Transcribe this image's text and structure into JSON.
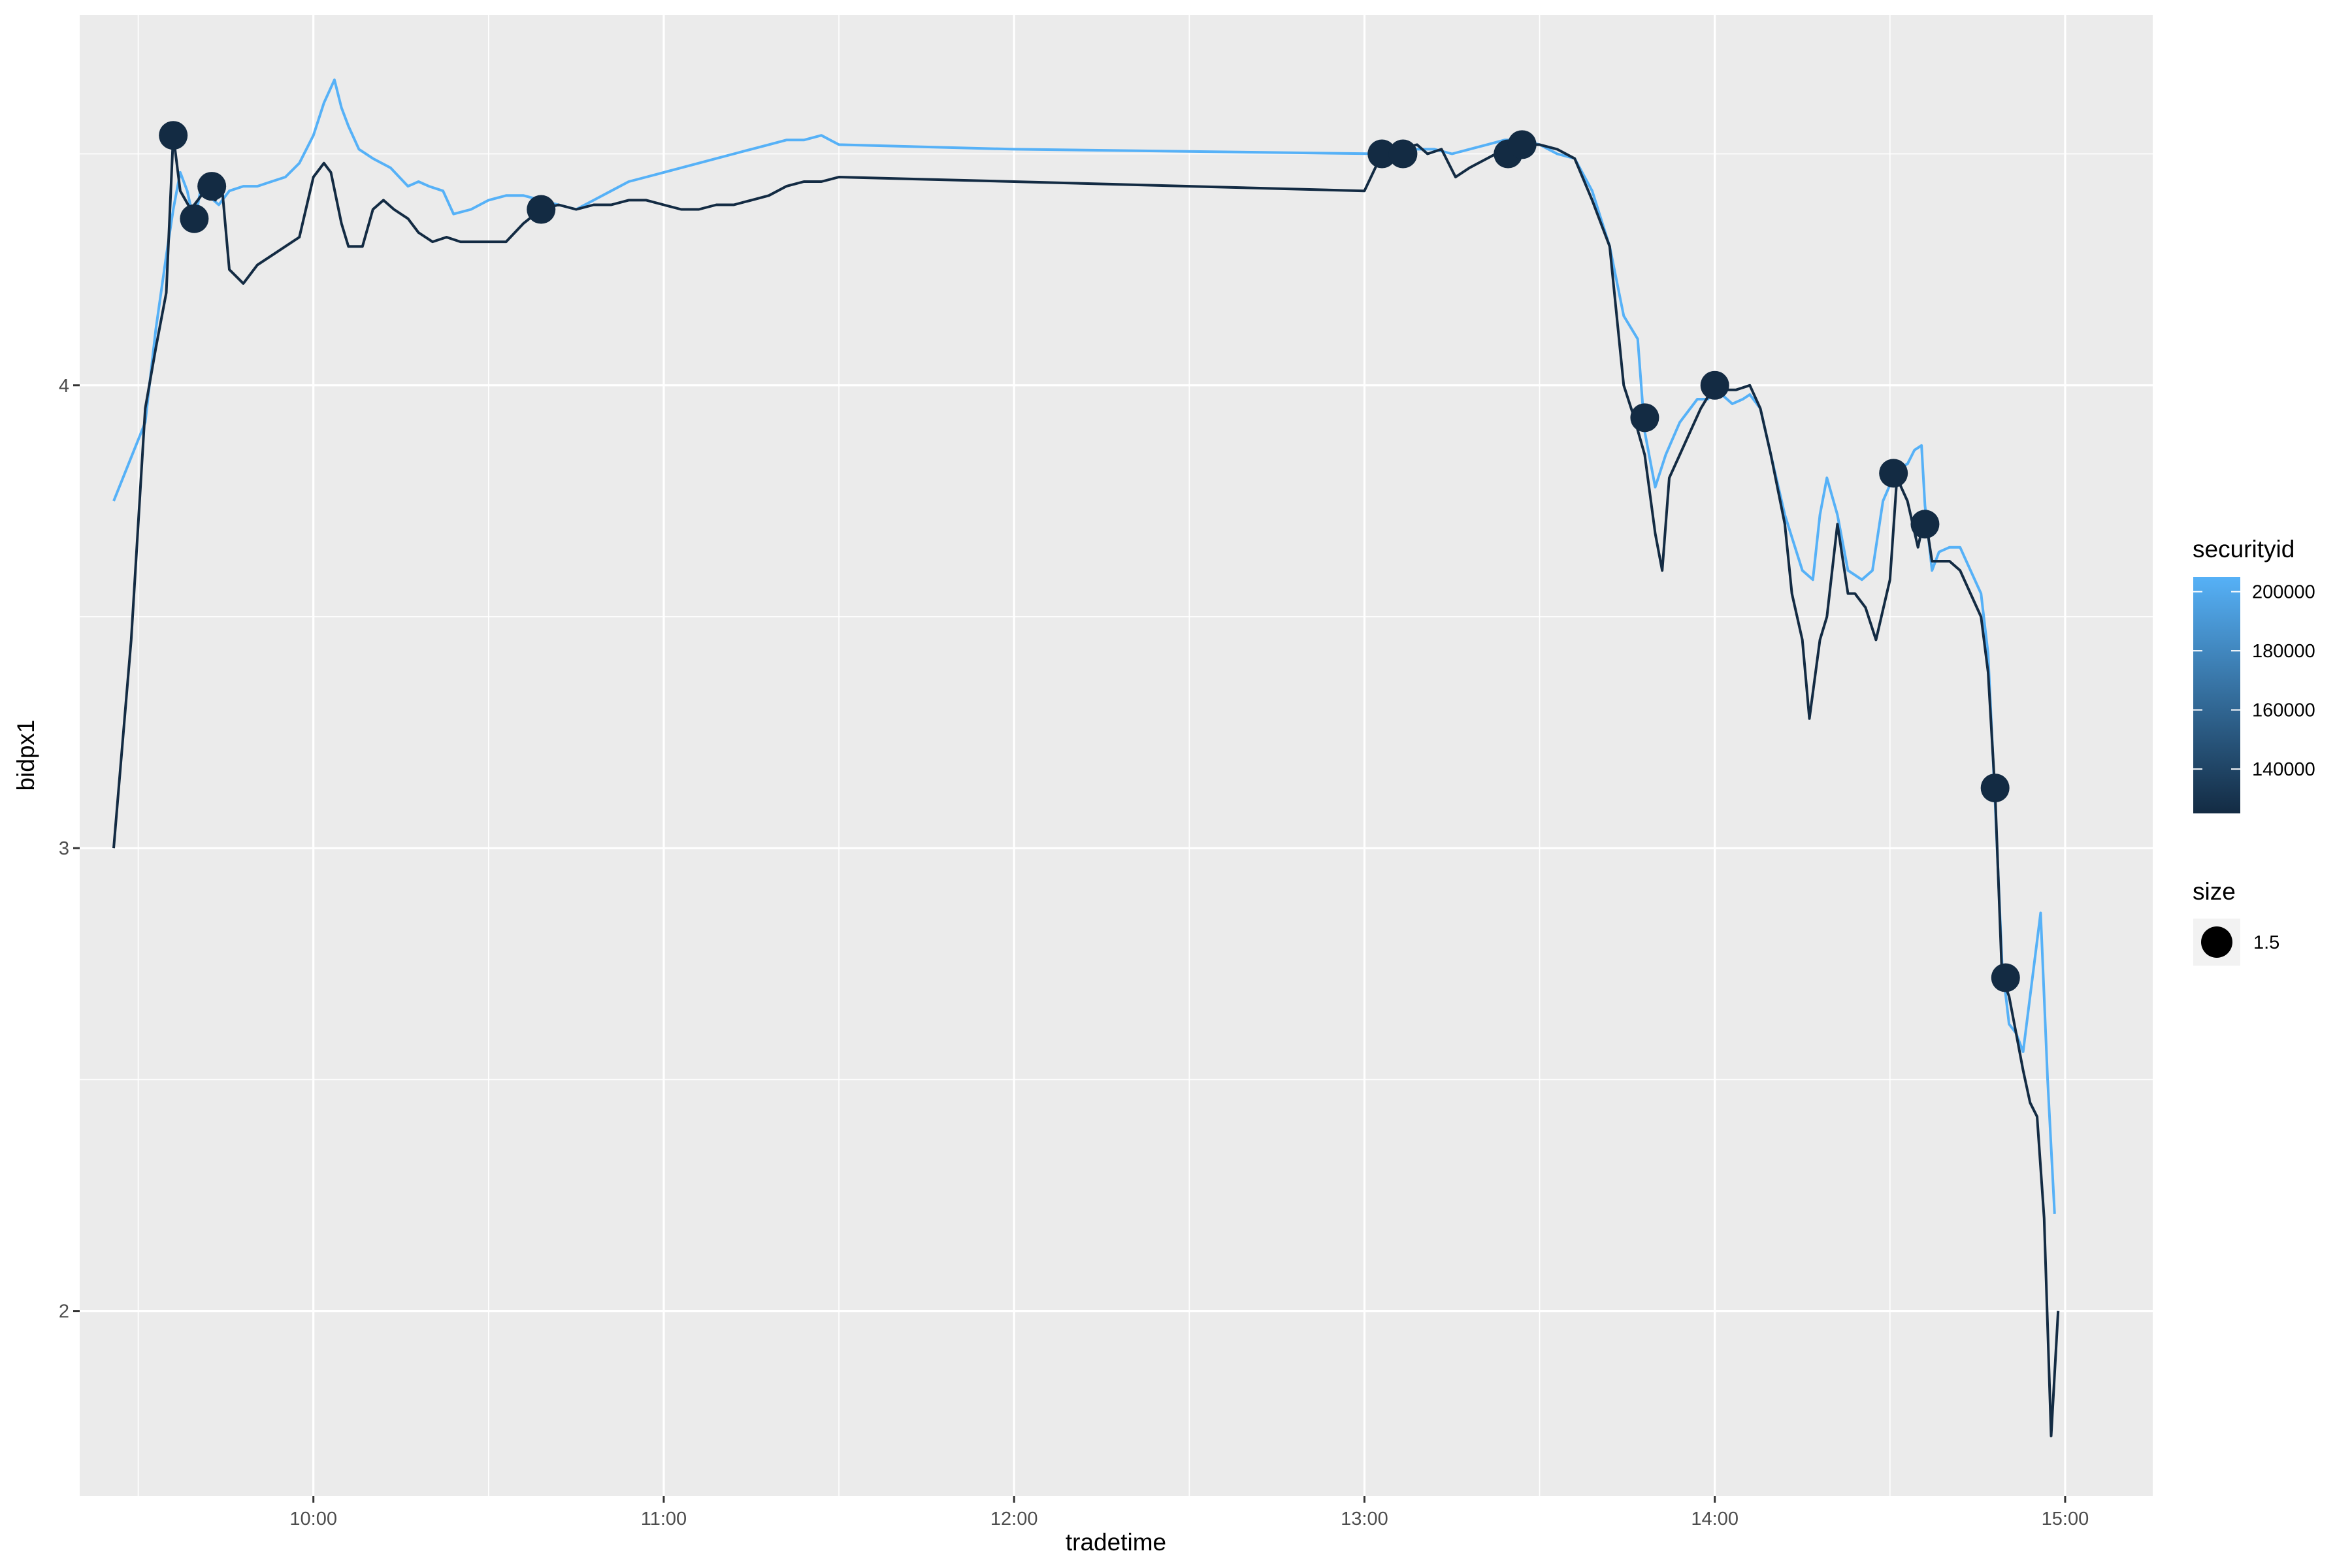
{
  "chart_data": {
    "type": "line",
    "title": "",
    "xlabel": "tradetime",
    "ylabel": "bidpx1",
    "x_unit": "hours",
    "xlim": [
      9.333,
      15.25
    ],
    "ylim": [
      1.6,
      4.8
    ],
    "x_ticks": [
      {
        "value": 10,
        "label": "10:00"
      },
      {
        "value": 11,
        "label": "11:00"
      },
      {
        "value": 12,
        "label": "12:00"
      },
      {
        "value": 13,
        "label": "13:00"
      },
      {
        "value": 14,
        "label": "14:00"
      },
      {
        "value": 15,
        "label": "15:00"
      }
    ],
    "y_ticks": [
      {
        "value": 2,
        "label": "2"
      },
      {
        "value": 3,
        "label": "3"
      },
      {
        "value": 4,
        "label": "4"
      }
    ],
    "grid": true,
    "panel_background": "#ebebeb",
    "series": [
      {
        "securityid": 205000,
        "color": "#56b1f7",
        "points": [
          [
            9.43,
            3.75
          ],
          [
            9.52,
            3.92
          ],
          [
            9.55,
            4.12
          ],
          [
            9.58,
            4.28
          ],
          [
            9.6,
            4.38
          ],
          [
            9.62,
            4.46
          ],
          [
            9.64,
            4.42
          ],
          [
            9.66,
            4.35
          ],
          [
            9.68,
            4.43
          ],
          [
            9.7,
            4.41
          ],
          [
            9.73,
            4.39
          ],
          [
            9.76,
            4.42
          ],
          [
            9.8,
            4.43
          ],
          [
            9.84,
            4.43
          ],
          [
            9.88,
            4.44
          ],
          [
            9.92,
            4.45
          ],
          [
            9.96,
            4.48
          ],
          [
            10.0,
            4.54
          ],
          [
            10.03,
            4.61
          ],
          [
            10.06,
            4.66
          ],
          [
            10.08,
            4.6
          ],
          [
            10.1,
            4.56
          ],
          [
            10.13,
            4.51
          ],
          [
            10.17,
            4.49
          ],
          [
            10.22,
            4.47
          ],
          [
            10.27,
            4.43
          ],
          [
            10.3,
            4.44
          ],
          [
            10.33,
            4.43
          ],
          [
            10.37,
            4.42
          ],
          [
            10.4,
            4.37
          ],
          [
            10.45,
            4.38
          ],
          [
            10.5,
            4.4
          ],
          [
            10.55,
            4.41
          ],
          [
            10.6,
            4.41
          ],
          [
            10.65,
            4.4
          ],
          [
            10.7,
            4.39
          ],
          [
            10.75,
            4.38
          ],
          [
            10.8,
            4.4
          ],
          [
            10.85,
            4.42
          ],
          [
            10.9,
            4.44
          ],
          [
            10.95,
            4.45
          ],
          [
            11.0,
            4.46
          ],
          [
            11.05,
            4.47
          ],
          [
            11.1,
            4.48
          ],
          [
            11.15,
            4.49
          ],
          [
            11.2,
            4.5
          ],
          [
            11.25,
            4.51
          ],
          [
            11.3,
            4.52
          ],
          [
            11.35,
            4.53
          ],
          [
            11.4,
            4.53
          ],
          [
            11.45,
            4.54
          ],
          [
            11.5,
            4.52
          ],
          [
            12.0,
            4.51
          ],
          [
            13.05,
            4.5
          ],
          [
            13.1,
            4.5
          ],
          [
            13.15,
            4.51
          ],
          [
            13.2,
            4.51
          ],
          [
            13.25,
            4.5
          ],
          [
            13.3,
            4.51
          ],
          [
            13.35,
            4.52
          ],
          [
            13.4,
            4.53
          ],
          [
            13.45,
            4.53
          ],
          [
            13.5,
            4.52
          ],
          [
            13.55,
            4.5
          ],
          [
            13.6,
            4.49
          ],
          [
            13.65,
            4.42
          ],
          [
            13.7,
            4.3
          ],
          [
            13.74,
            4.15
          ],
          [
            13.78,
            4.1
          ],
          [
            13.8,
            3.9
          ],
          [
            13.83,
            3.78
          ],
          [
            13.86,
            3.85
          ],
          [
            13.9,
            3.92
          ],
          [
            13.95,
            3.97
          ],
          [
            13.98,
            3.97
          ],
          [
            14.0,
            3.99
          ],
          [
            14.02,
            3.98
          ],
          [
            14.05,
            3.96
          ],
          [
            14.08,
            3.97
          ],
          [
            14.1,
            3.98
          ],
          [
            14.13,
            3.95
          ],
          [
            14.16,
            3.85
          ],
          [
            14.2,
            3.72
          ],
          [
            14.25,
            3.6
          ],
          [
            14.28,
            3.58
          ],
          [
            14.3,
            3.72
          ],
          [
            14.32,
            3.8
          ],
          [
            14.35,
            3.72
          ],
          [
            14.38,
            3.6
          ],
          [
            14.42,
            3.58
          ],
          [
            14.45,
            3.6
          ],
          [
            14.48,
            3.75
          ],
          [
            14.52,
            3.82
          ],
          [
            14.55,
            3.83
          ],
          [
            14.57,
            3.86
          ],
          [
            14.59,
            3.87
          ],
          [
            14.6,
            3.74
          ],
          [
            14.62,
            3.6
          ],
          [
            14.64,
            3.64
          ],
          [
            14.67,
            3.65
          ],
          [
            14.7,
            3.65
          ],
          [
            14.73,
            3.6
          ],
          [
            14.76,
            3.55
          ],
          [
            14.78,
            3.42
          ],
          [
            14.8,
            3.1
          ],
          [
            14.82,
            2.75
          ],
          [
            14.84,
            2.62
          ],
          [
            14.86,
            2.6
          ],
          [
            14.88,
            2.56
          ],
          [
            14.9,
            2.68
          ],
          [
            14.93,
            2.86
          ],
          [
            14.95,
            2.5
          ],
          [
            14.97,
            2.21
          ]
        ]
      },
      {
        "securityid": 125000,
        "color": "#132b43",
        "points": [
          [
            9.43,
            3.0
          ],
          [
            9.48,
            3.45
          ],
          [
            9.52,
            3.95
          ],
          [
            9.55,
            4.08
          ],
          [
            9.58,
            4.2
          ],
          [
            9.6,
            4.54
          ],
          [
            9.62,
            4.42
          ],
          [
            9.65,
            4.38
          ],
          [
            9.68,
            4.41
          ],
          [
            9.7,
            4.42
          ],
          [
            9.72,
            4.4
          ],
          [
            9.74,
            4.42
          ],
          [
            9.76,
            4.25
          ],
          [
            9.8,
            4.22
          ],
          [
            9.84,
            4.26
          ],
          [
            9.88,
            4.28
          ],
          [
            9.92,
            4.3
          ],
          [
            9.96,
            4.32
          ],
          [
            10.0,
            4.45
          ],
          [
            10.03,
            4.48
          ],
          [
            10.05,
            4.46
          ],
          [
            10.08,
            4.35
          ],
          [
            10.1,
            4.3
          ],
          [
            10.14,
            4.3
          ],
          [
            10.17,
            4.38
          ],
          [
            10.2,
            4.4
          ],
          [
            10.23,
            4.38
          ],
          [
            10.27,
            4.36
          ],
          [
            10.3,
            4.33
          ],
          [
            10.34,
            4.31
          ],
          [
            10.38,
            4.32
          ],
          [
            10.42,
            4.31
          ],
          [
            10.46,
            4.31
          ],
          [
            10.5,
            4.31
          ],
          [
            10.55,
            4.31
          ],
          [
            10.6,
            4.35
          ],
          [
            10.65,
            4.38
          ],
          [
            10.7,
            4.39
          ],
          [
            10.75,
            4.38
          ],
          [
            10.8,
            4.39
          ],
          [
            10.85,
            4.39
          ],
          [
            10.9,
            4.4
          ],
          [
            10.95,
            4.4
          ],
          [
            11.0,
            4.39
          ],
          [
            11.05,
            4.38
          ],
          [
            11.1,
            4.38
          ],
          [
            11.15,
            4.39
          ],
          [
            11.2,
            4.39
          ],
          [
            11.25,
            4.4
          ],
          [
            11.3,
            4.41
          ],
          [
            11.35,
            4.43
          ],
          [
            11.4,
            4.44
          ],
          [
            11.45,
            4.44
          ],
          [
            11.5,
            4.45
          ],
          [
            12.0,
            4.44
          ],
          [
            13.0,
            4.42
          ],
          [
            13.05,
            4.5
          ],
          [
            13.1,
            4.51
          ],
          [
            13.15,
            4.52
          ],
          [
            13.18,
            4.5
          ],
          [
            13.22,
            4.51
          ],
          [
            13.26,
            4.45
          ],
          [
            13.3,
            4.47
          ],
          [
            13.35,
            4.49
          ],
          [
            13.4,
            4.51
          ],
          [
            13.45,
            4.52
          ],
          [
            13.5,
            4.52
          ],
          [
            13.55,
            4.51
          ],
          [
            13.6,
            4.49
          ],
          [
            13.65,
            4.4
          ],
          [
            13.7,
            4.3
          ],
          [
            13.74,
            4.0
          ],
          [
            13.77,
            3.93
          ],
          [
            13.8,
            3.85
          ],
          [
            13.83,
            3.68
          ],
          [
            13.85,
            3.6
          ],
          [
            13.87,
            3.8
          ],
          [
            13.9,
            3.85
          ],
          [
            13.93,
            3.9
          ],
          [
            13.96,
            3.95
          ],
          [
            14.0,
            4.0
          ],
          [
            14.03,
            3.99
          ],
          [
            14.06,
            3.99
          ],
          [
            14.1,
            4.0
          ],
          [
            14.13,
            3.95
          ],
          [
            14.16,
            3.85
          ],
          [
            14.2,
            3.7
          ],
          [
            14.22,
            3.55
          ],
          [
            14.25,
            3.45
          ],
          [
            14.27,
            3.28
          ],
          [
            14.3,
            3.45
          ],
          [
            14.32,
            3.5
          ],
          [
            14.35,
            3.7
          ],
          [
            14.38,
            3.55
          ],
          [
            14.4,
            3.55
          ],
          [
            14.43,
            3.52
          ],
          [
            14.46,
            3.45
          ],
          [
            14.5,
            3.58
          ],
          [
            14.52,
            3.8
          ],
          [
            14.55,
            3.75
          ],
          [
            14.58,
            3.65
          ],
          [
            14.6,
            3.72
          ],
          [
            14.62,
            3.62
          ],
          [
            14.64,
            3.62
          ],
          [
            14.67,
            3.62
          ],
          [
            14.7,
            3.6
          ],
          [
            14.73,
            3.55
          ],
          [
            14.76,
            3.5
          ],
          [
            14.78,
            3.38
          ],
          [
            14.8,
            3.12
          ],
          [
            14.82,
            2.72
          ],
          [
            14.84,
            2.68
          ],
          [
            14.86,
            2.6
          ],
          [
            14.88,
            2.52
          ],
          [
            14.9,
            2.45
          ],
          [
            14.92,
            2.42
          ],
          [
            14.94,
            2.2
          ],
          [
            14.96,
            1.73
          ],
          [
            14.98,
            2.0
          ]
        ]
      }
    ],
    "markers": [
      {
        "x": 9.6,
        "y": 4.54
      },
      {
        "x": 9.66,
        "y": 4.36
      },
      {
        "x": 9.71,
        "y": 4.43
      },
      {
        "x": 10.65,
        "y": 4.38
      },
      {
        "x": 13.05,
        "y": 4.5
      },
      {
        "x": 13.11,
        "y": 4.5
      },
      {
        "x": 13.41,
        "y": 4.5
      },
      {
        "x": 13.45,
        "y": 4.52
      },
      {
        "x": 13.8,
        "y": 3.93
      },
      {
        "x": 14.0,
        "y": 4.0
      },
      {
        "x": 14.51,
        "y": 3.81
      },
      {
        "x": 14.6,
        "y": 3.7
      },
      {
        "x": 14.8,
        "y": 3.13
      },
      {
        "x": 14.83,
        "y": 2.72
      }
    ],
    "marker_color": "#132b43",
    "legend": {
      "placement": "right",
      "color_title": "securityid",
      "color_range": [
        125000,
        205000
      ],
      "color_low": "#132b43",
      "color_high": "#56b1f7",
      "color_ticks": [
        {
          "value": 140000,
          "label": "140000"
        },
        {
          "value": 160000,
          "label": "160000"
        },
        {
          "value": 180000,
          "label": "180000"
        },
        {
          "value": 200000,
          "label": "200000"
        }
      ],
      "size_title": "size",
      "size_label": "1.5"
    }
  }
}
